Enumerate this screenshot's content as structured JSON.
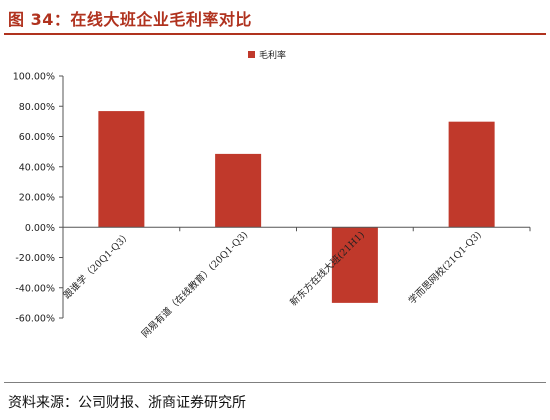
{
  "figure": {
    "title": "图 34：在线大班企业毛利率对比",
    "source": "资料来源：公司财报、浙商证券研究所"
  },
  "chart_data": {
    "type": "bar",
    "categories": [
      "跟谁学（20Q1-Q3）",
      "网易有道（在线教育）(20Q1-Q3)",
      "新东方在线大班(21H1)",
      "学而思网校(21Q1-Q3)"
    ],
    "series": [
      {
        "name": "毛利率",
        "values": [
          76.8,
          48.5,
          -50.0,
          69.8
        ],
        "color": "#c0392b"
      }
    ],
    "ylim": [
      -60,
      100
    ],
    "yticks": [
      -60,
      -40,
      -20,
      0,
      20,
      40,
      60,
      80,
      100
    ],
    "ytick_labels": [
      "-60.00%",
      "-40.00%",
      "-20.00%",
      "0.00%",
      "20.00%",
      "40.00%",
      "60.00%",
      "80.00%",
      "100.00%"
    ],
    "legend_position": "top-center",
    "grid": false
  }
}
